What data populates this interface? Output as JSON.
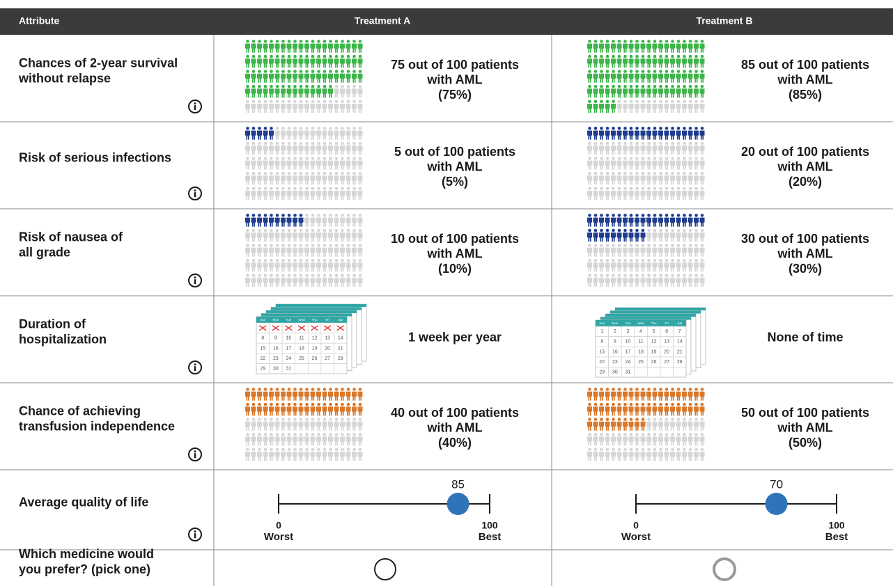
{
  "header": {
    "attribute": "Attribute",
    "treatments": [
      "Treatment A",
      "Treatment B"
    ]
  },
  "rows": [
    {
      "kind": "icons",
      "label": [
        "Chances of 2-year survival",
        "without relapse"
      ],
      "info": true,
      "color": "#3db54a",
      "total": 100,
      "cells": [
        {
          "count": 75,
          "text": [
            "75 out of 100 patients",
            "with AML",
            "(75%)"
          ]
        },
        {
          "count": 85,
          "text": [
            "85 out of 100 patients",
            "with AML",
            "(85%)"
          ]
        }
      ]
    },
    {
      "kind": "icons",
      "label": [
        "Risk of serious infections"
      ],
      "info": true,
      "color": "#1f3c8f",
      "total": 100,
      "cells": [
        {
          "count": 5,
          "text": [
            "5 out of 100 patients",
            "with AML",
            "(5%)"
          ]
        },
        {
          "count": 20,
          "text": [
            "20 out of 100 patients",
            "with AML",
            "(20%)"
          ]
        }
      ]
    },
    {
      "kind": "icons",
      "label": [
        "Risk of nausea of",
        "all grade"
      ],
      "info": true,
      "color": "#1f3c8f",
      "total": 100,
      "cells": [
        {
          "count": 10,
          "text": [
            "10 out of 100 patients",
            "with AML",
            "(10%)"
          ]
        },
        {
          "count": 30,
          "text": [
            "30 out of 100 patients",
            "with AML",
            "(30%)"
          ]
        }
      ]
    },
    {
      "kind": "calendar",
      "label": [
        "Duration of",
        "hospitalization"
      ],
      "info": true,
      "weekdays": [
        "Sun",
        "Mon",
        "Tue",
        "Wed",
        "Thu",
        "Fri",
        "Sat"
      ],
      "days": [
        1,
        2,
        3,
        4,
        5,
        6,
        7,
        8,
        9,
        10,
        11,
        12,
        13,
        14,
        15,
        16,
        17,
        18,
        19,
        20,
        21,
        22,
        23,
        24,
        25,
        26,
        27,
        28,
        29,
        30,
        31
      ],
      "cells": [
        {
          "crossed": 7,
          "text": [
            "1 week per year"
          ]
        },
        {
          "crossed": 0,
          "text": [
            "None of time"
          ]
        }
      ]
    },
    {
      "kind": "icons",
      "label": [
        "Chance of achieving",
        "transfusion independence"
      ],
      "info": true,
      "color": "#d9782b",
      "total": 100,
      "cells": [
        {
          "count": 40,
          "text": [
            "40 out of 100 patients",
            "with AML",
            "(40%)"
          ]
        },
        {
          "count": 50,
          "text": [
            "50 out of 100 patients",
            "with AML",
            "(50%)"
          ]
        }
      ]
    },
    {
      "kind": "scale",
      "label": [
        "Average quality of life"
      ],
      "info": true,
      "min": 0,
      "max": 100,
      "min_label": "Worst",
      "max_label": "Best",
      "color": "#2f73b8",
      "cells": [
        {
          "value": 85
        },
        {
          "value": 70
        }
      ]
    },
    {
      "kind": "choice",
      "label": [
        "Which medicine would",
        "you prefer? (pick one)"
      ],
      "info": false,
      "cells": [
        {
          "color": "#222222"
        },
        {
          "color": "#999999"
        }
      ]
    }
  ]
}
